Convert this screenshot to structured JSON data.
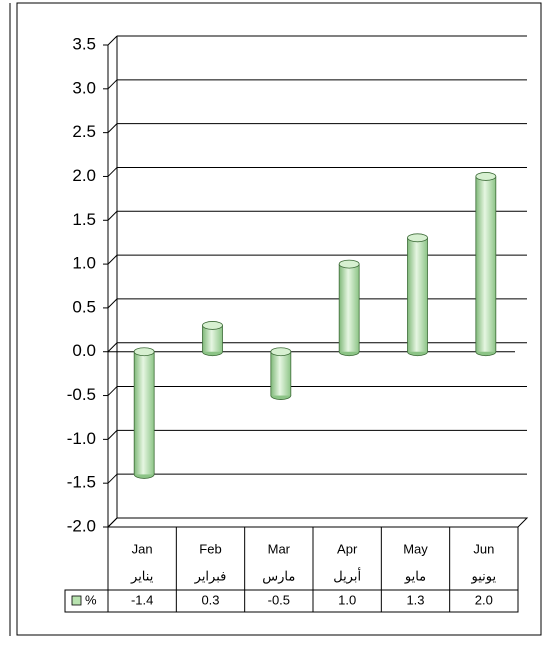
{
  "chart_data": {
    "type": "bar",
    "categories": [
      "Jan",
      "Feb",
      "Mar",
      "Apr",
      "May",
      "Jun"
    ],
    "categories_ar": [
      "يناير",
      "فبراير",
      "مارس",
      "أبريل",
      "مايو",
      "يونيو"
    ],
    "series": [
      {
        "name": "%",
        "color": "#b9e3b0",
        "values": [
          -1.4,
          0.3,
          -0.5,
          1.0,
          1.3,
          2.0
        ],
        "value_labels": [
          "-1.4",
          "0.3",
          "-0.5",
          "1.0",
          "1.3",
          "2.0"
        ]
      }
    ],
    "ylim": [
      -2.0,
      3.5
    ],
    "yticks": [
      {
        "value": -2,
        "label": "-2.0"
      },
      {
        "value": -1.5,
        "label": "-1.5"
      },
      {
        "value": -1,
        "label": "-1.0"
      },
      {
        "value": -0.5,
        "label": "-0.5"
      },
      {
        "value": 0,
        "label": "0.0"
      },
      {
        "value": 0.5,
        "label": "0.5"
      },
      {
        "value": 1,
        "label": "1.0"
      },
      {
        "value": 1.5,
        "label": "1.5"
      },
      {
        "value": 2,
        "label": "2.0"
      },
      {
        "value": 2.5,
        "label": "2.5"
      },
      {
        "value": 3,
        "label": "3.0"
      },
      {
        "value": 3.5,
        "label": "3.5"
      }
    ],
    "grid": true
  }
}
